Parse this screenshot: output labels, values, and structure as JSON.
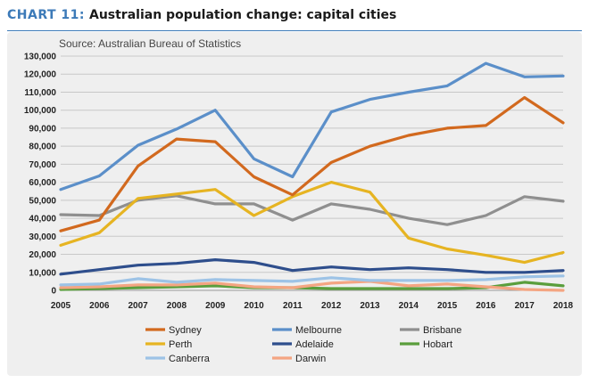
{
  "header": {
    "chart_number": "CHART 11:",
    "title": "Australian population change: capital cities"
  },
  "chart_data": {
    "type": "line",
    "title": "Australian population change: capital cities",
    "source": "Source: Australian Bureau of Statistics",
    "x": [
      2005,
      2006,
      2007,
      2008,
      2009,
      2010,
      2011,
      2012,
      2013,
      2014,
      2015,
      2016,
      2017,
      2018
    ],
    "ylim": [
      0,
      130000
    ],
    "yticks": [
      0,
      10000,
      20000,
      30000,
      40000,
      50000,
      60000,
      70000,
      80000,
      90000,
      100000,
      110000,
      120000,
      130000
    ],
    "ytick_labels": [
      "0",
      "10,000",
      "20,000",
      "30,000",
      "40,000",
      "50,000",
      "60,000",
      "70,000",
      "80,000",
      "90,000",
      "100,000",
      "110,000",
      "120,000",
      "130,000"
    ],
    "grid": true,
    "legend_position": "bottom",
    "series": [
      {
        "name": "Sydney",
        "color": "#d2691e",
        "values": [
          33000,
          39000,
          69000,
          84000,
          82500,
          63000,
          53000,
          71000,
          80000,
          86000,
          90000,
          91500,
          107000,
          93000
        ]
      },
      {
        "name": "Melbourne",
        "color": "#5b8fc9",
        "values": [
          56000,
          63500,
          80500,
          89500,
          100000,
          73000,
          63000,
          99000,
          106000,
          110000,
          113500,
          126000,
          118500,
          119000
        ]
      },
      {
        "name": "Brisbane",
        "color": "#8f8f8f",
        "values": [
          42000,
          41500,
          50000,
          52500,
          48000,
          48000,
          39000,
          48000,
          45000,
          40000,
          36500,
          41500,
          52000,
          49500
        ]
      },
      {
        "name": "Perth",
        "color": "#e6b422",
        "values": [
          25000,
          32000,
          51000,
          53500,
          56000,
          41500,
          52000,
          60000,
          54500,
          29000,
          23000,
          19500,
          15500,
          21000
        ]
      },
      {
        "name": "Adelaide",
        "color": "#2e4e8c",
        "values": [
          9000,
          11500,
          14000,
          15000,
          17000,
          15500,
          11000,
          13000,
          11500,
          12500,
          11500,
          10000,
          10000,
          11000
        ]
      },
      {
        "name": "Hobart",
        "color": "#5a9e3c",
        "values": [
          500,
          1000,
          1500,
          2000,
          2500,
          1500,
          1500,
          1000,
          1000,
          1000,
          1000,
          1500,
          4500,
          2500
        ]
      },
      {
        "name": "Canberra",
        "color": "#9dc3e6",
        "values": [
          3000,
          3500,
          6500,
          4500,
          6000,
          5500,
          5000,
          7000,
          5500,
          5500,
          5500,
          6000,
          7500,
          8000
        ]
      },
      {
        "name": "Darwin",
        "color": "#f4a582",
        "values": [
          1500,
          2000,
          3000,
          3000,
          4000,
          2000,
          1500,
          4000,
          5000,
          2500,
          3500,
          2000,
          500,
          0
        ]
      }
    ]
  }
}
